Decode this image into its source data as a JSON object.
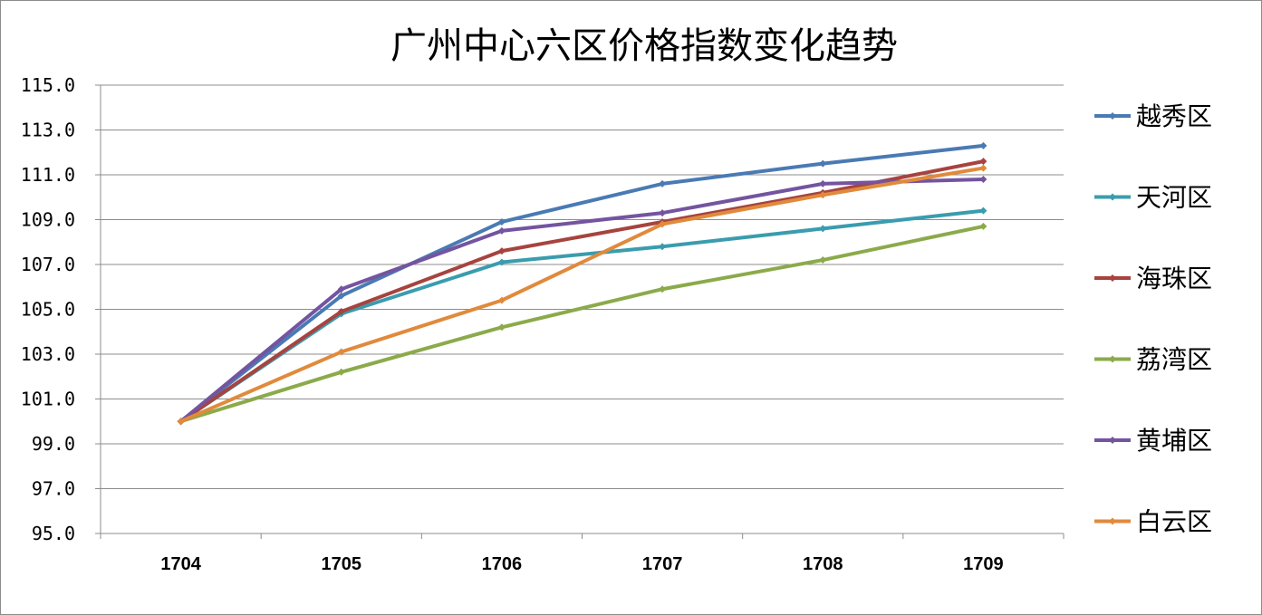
{
  "chart_data": {
    "type": "line",
    "title": "广州中心六区价格指数变化趋势",
    "xlabel": "",
    "ylabel": "",
    "x": [
      "1704",
      "1705",
      "1706",
      "1707",
      "1708",
      "1709"
    ],
    "ylim": [
      95.0,
      115.0
    ],
    "yticks": [
      "95.0",
      "97.0",
      "99.0",
      "101.0",
      "103.0",
      "105.0",
      "107.0",
      "109.0",
      "111.0",
      "113.0",
      "115.0"
    ],
    "grid": "horizontal",
    "legend_position": "right",
    "series": [
      {
        "name": "越秀区",
        "color": "#4a7ab4",
        "values": [
          100.0,
          105.6,
          108.9,
          110.6,
          111.5,
          112.3
        ]
      },
      {
        "name": "天河区",
        "color": "#3a9cae",
        "values": [
          100.0,
          104.8,
          107.1,
          107.8,
          108.6,
          109.4
        ]
      },
      {
        "name": "海珠区",
        "color": "#a7433f",
        "values": [
          100.0,
          104.9,
          107.6,
          108.9,
          110.2,
          111.6
        ]
      },
      {
        "name": "荔湾区",
        "color": "#8baa4a",
        "values": [
          100.0,
          102.2,
          104.2,
          105.9,
          107.2,
          108.7
        ]
      },
      {
        "name": "黄埔区",
        "color": "#7454a0",
        "values": [
          100.0,
          105.9,
          108.5,
          109.3,
          110.6,
          110.8
        ]
      },
      {
        "name": "白云区",
        "color": "#e08a3c",
        "values": [
          100.0,
          103.1,
          105.4,
          108.8,
          110.1,
          111.3
        ]
      }
    ]
  }
}
